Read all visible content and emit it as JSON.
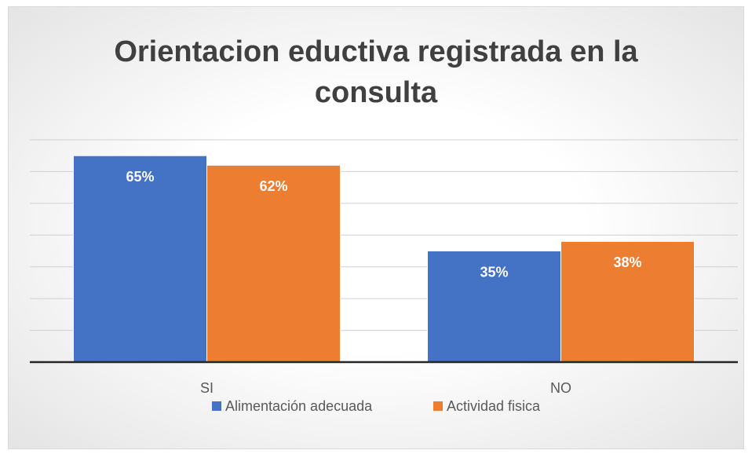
{
  "chart_data": {
    "type": "bar",
    "title": "Orientacion eductiva registrada en la consulta",
    "categories": [
      "SI",
      "NO"
    ],
    "series": [
      {
        "name": "Alimentación adecuada",
        "color": "#4472c4",
        "values": [
          65,
          35
        ],
        "value_labels": [
          "65%",
          "35%"
        ]
      },
      {
        "name": "Actividad fisica",
        "color": "#ed7d31",
        "values": [
          62,
          38
        ],
        "value_labels": [
          "62%",
          "38%"
        ]
      }
    ],
    "ylim": [
      0,
      70
    ],
    "yticks": [
      0,
      10,
      20,
      30,
      40,
      50,
      60,
      70
    ],
    "grid": true,
    "legend": "bottom"
  }
}
